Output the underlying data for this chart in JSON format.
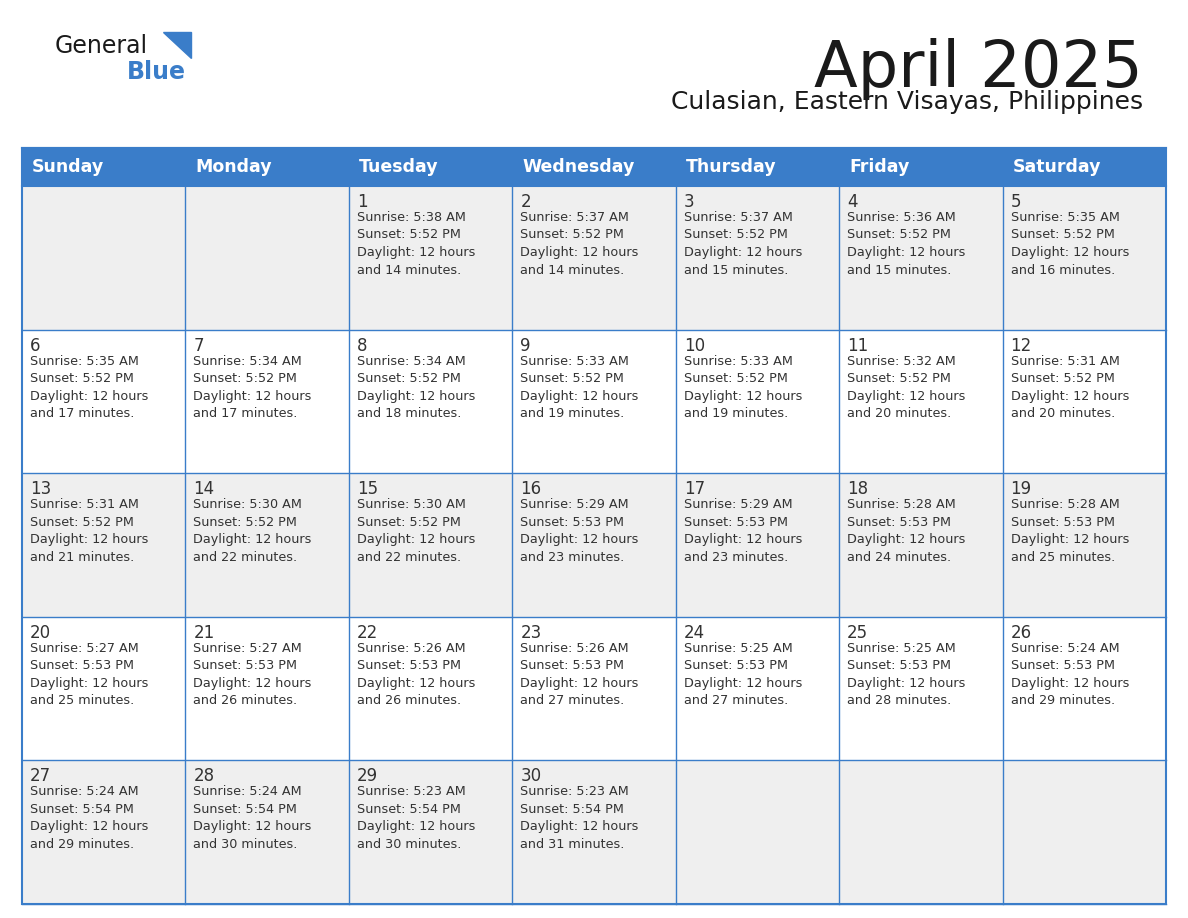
{
  "title": "April 2025",
  "subtitle": "Culasian, Eastern Visayas, Philippines",
  "header_bg": "#3A7DC9",
  "header_text": "#FFFFFF",
  "header_days": [
    "Sunday",
    "Monday",
    "Tuesday",
    "Wednesday",
    "Thursday",
    "Friday",
    "Saturday"
  ],
  "cell_bg_light": "#EFEFEF",
  "cell_bg_white": "#FFFFFF",
  "border_color": "#3A7DC9",
  "text_color": "#333333",
  "logo_general_color": "#1a1a1a",
  "logo_blue_color": "#3A7DC9",
  "title_color": "#1a1a1a",
  "subtitle_color": "#1a1a1a",
  "weeks": [
    [
      {
        "day": null,
        "info": null
      },
      {
        "day": null,
        "info": null
      },
      {
        "day": 1,
        "info": "Sunrise: 5:38 AM\nSunset: 5:52 PM\nDaylight: 12 hours\nand 14 minutes."
      },
      {
        "day": 2,
        "info": "Sunrise: 5:37 AM\nSunset: 5:52 PM\nDaylight: 12 hours\nand 14 minutes."
      },
      {
        "day": 3,
        "info": "Sunrise: 5:37 AM\nSunset: 5:52 PM\nDaylight: 12 hours\nand 15 minutes."
      },
      {
        "day": 4,
        "info": "Sunrise: 5:36 AM\nSunset: 5:52 PM\nDaylight: 12 hours\nand 15 minutes."
      },
      {
        "day": 5,
        "info": "Sunrise: 5:35 AM\nSunset: 5:52 PM\nDaylight: 12 hours\nand 16 minutes."
      }
    ],
    [
      {
        "day": 6,
        "info": "Sunrise: 5:35 AM\nSunset: 5:52 PM\nDaylight: 12 hours\nand 17 minutes."
      },
      {
        "day": 7,
        "info": "Sunrise: 5:34 AM\nSunset: 5:52 PM\nDaylight: 12 hours\nand 17 minutes."
      },
      {
        "day": 8,
        "info": "Sunrise: 5:34 AM\nSunset: 5:52 PM\nDaylight: 12 hours\nand 18 minutes."
      },
      {
        "day": 9,
        "info": "Sunrise: 5:33 AM\nSunset: 5:52 PM\nDaylight: 12 hours\nand 19 minutes."
      },
      {
        "day": 10,
        "info": "Sunrise: 5:33 AM\nSunset: 5:52 PM\nDaylight: 12 hours\nand 19 minutes."
      },
      {
        "day": 11,
        "info": "Sunrise: 5:32 AM\nSunset: 5:52 PM\nDaylight: 12 hours\nand 20 minutes."
      },
      {
        "day": 12,
        "info": "Sunrise: 5:31 AM\nSunset: 5:52 PM\nDaylight: 12 hours\nand 20 minutes."
      }
    ],
    [
      {
        "day": 13,
        "info": "Sunrise: 5:31 AM\nSunset: 5:52 PM\nDaylight: 12 hours\nand 21 minutes."
      },
      {
        "day": 14,
        "info": "Sunrise: 5:30 AM\nSunset: 5:52 PM\nDaylight: 12 hours\nand 22 minutes."
      },
      {
        "day": 15,
        "info": "Sunrise: 5:30 AM\nSunset: 5:52 PM\nDaylight: 12 hours\nand 22 minutes."
      },
      {
        "day": 16,
        "info": "Sunrise: 5:29 AM\nSunset: 5:53 PM\nDaylight: 12 hours\nand 23 minutes."
      },
      {
        "day": 17,
        "info": "Sunrise: 5:29 AM\nSunset: 5:53 PM\nDaylight: 12 hours\nand 23 minutes."
      },
      {
        "day": 18,
        "info": "Sunrise: 5:28 AM\nSunset: 5:53 PM\nDaylight: 12 hours\nand 24 minutes."
      },
      {
        "day": 19,
        "info": "Sunrise: 5:28 AM\nSunset: 5:53 PM\nDaylight: 12 hours\nand 25 minutes."
      }
    ],
    [
      {
        "day": 20,
        "info": "Sunrise: 5:27 AM\nSunset: 5:53 PM\nDaylight: 12 hours\nand 25 minutes."
      },
      {
        "day": 21,
        "info": "Sunrise: 5:27 AM\nSunset: 5:53 PM\nDaylight: 12 hours\nand 26 minutes."
      },
      {
        "day": 22,
        "info": "Sunrise: 5:26 AM\nSunset: 5:53 PM\nDaylight: 12 hours\nand 26 minutes."
      },
      {
        "day": 23,
        "info": "Sunrise: 5:26 AM\nSunset: 5:53 PM\nDaylight: 12 hours\nand 27 minutes."
      },
      {
        "day": 24,
        "info": "Sunrise: 5:25 AM\nSunset: 5:53 PM\nDaylight: 12 hours\nand 27 minutes."
      },
      {
        "day": 25,
        "info": "Sunrise: 5:25 AM\nSunset: 5:53 PM\nDaylight: 12 hours\nand 28 minutes."
      },
      {
        "day": 26,
        "info": "Sunrise: 5:24 AM\nSunset: 5:53 PM\nDaylight: 12 hours\nand 29 minutes."
      }
    ],
    [
      {
        "day": 27,
        "info": "Sunrise: 5:24 AM\nSunset: 5:54 PM\nDaylight: 12 hours\nand 29 minutes."
      },
      {
        "day": 28,
        "info": "Sunrise: 5:24 AM\nSunset: 5:54 PM\nDaylight: 12 hours\nand 30 minutes."
      },
      {
        "day": 29,
        "info": "Sunrise: 5:23 AM\nSunset: 5:54 PM\nDaylight: 12 hours\nand 30 minutes."
      },
      {
        "day": 30,
        "info": "Sunrise: 5:23 AM\nSunset: 5:54 PM\nDaylight: 12 hours\nand 31 minutes."
      },
      {
        "day": null,
        "info": null
      },
      {
        "day": null,
        "info": null
      },
      {
        "day": null,
        "info": null
      }
    ]
  ]
}
